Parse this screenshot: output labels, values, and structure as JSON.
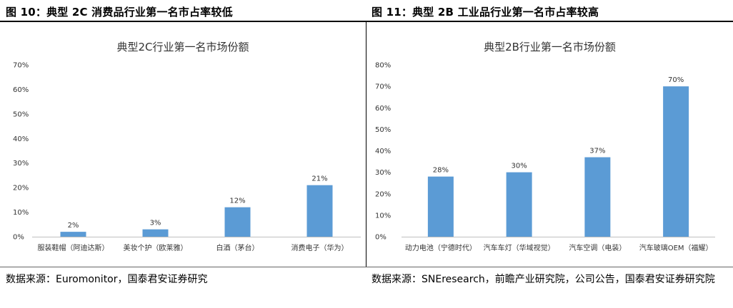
{
  "figures": {
    "left": {
      "title": "图 10：典型 2C 消费品行业第一名市占率较低",
      "source": "数据来源：Euromonitor，国泰君安证券研究"
    },
    "right": {
      "title": "图 11：典型 2B 工业品行业第一名市占率较高",
      "source": "数据来源：SNEresearch，前瞻产业研究院，公司公告，国泰君安证券研究院"
    }
  },
  "chart_data": [
    {
      "type": "bar",
      "title": "典型2C行业第一名市场份额",
      "categories": [
        "服装鞋帽（阿迪达斯）",
        "美妆个护（欧莱雅）",
        "白酒（茅台）",
        "消费电子（华为）"
      ],
      "values": [
        2,
        3,
        12,
        21
      ],
      "data_labels": [
        "2%",
        "3%",
        "12%",
        "21%"
      ],
      "ylim": [
        0,
        70
      ],
      "yticks": [
        0,
        10,
        20,
        30,
        40,
        50,
        60,
        70
      ],
      "ytick_labels": [
        "0%",
        "10%",
        "20%",
        "30%",
        "40%",
        "50%",
        "60%",
        "70%"
      ],
      "xlabel": "",
      "ylabel": "",
      "grid": false,
      "bar_color": "#5b9bd5"
    },
    {
      "type": "bar",
      "title": "典型2B行业第一名市场份额",
      "categories": [
        "动力电池（宁德时代）",
        "汽车车灯（华域视觉）",
        "汽车空调（电装）",
        "汽车玻璃OEM（福耀）"
      ],
      "values": [
        28,
        30,
        37,
        70
      ],
      "data_labels": [
        "28%",
        "30%",
        "37%",
        "70%"
      ],
      "ylim": [
        0,
        80
      ],
      "yticks": [
        0,
        10,
        20,
        30,
        40,
        50,
        60,
        70,
        80
      ],
      "ytick_labels": [
        "0%",
        "10%",
        "20%",
        "30%",
        "40%",
        "50%",
        "60%",
        "70%",
        "80%"
      ],
      "xlabel": "",
      "ylabel": "",
      "grid": false,
      "bar_color": "#5b9bd5"
    }
  ]
}
